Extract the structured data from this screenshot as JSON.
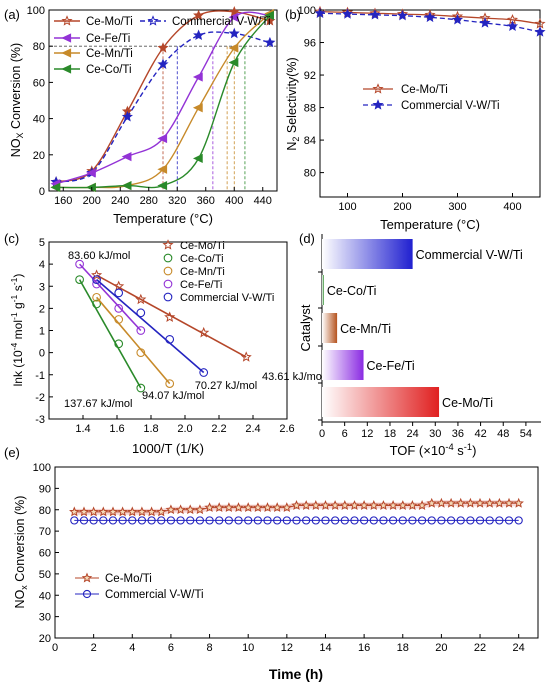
{
  "panels": {
    "a": {
      "label": "(a)",
      "chart_data": {
        "type": "line",
        "xlabel": "Temperature (°C)",
        "ylabel": "NOx Conversion (%)",
        "xlim": [
          140,
          460
        ],
        "ylim": [
          0,
          100
        ],
        "xticks": [
          160,
          200,
          240,
          280,
          320,
          360,
          400,
          440
        ],
        "yticks": [
          0,
          20,
          40,
          60,
          80,
          100
        ],
        "legend_position": "top",
        "series": [
          {
            "name": "Ce-Mo/Ti",
            "marker": "star",
            "color": "#b5472a",
            "dash": false,
            "x": [
              150,
              200,
              250,
              300,
              350,
              400,
              450
            ],
            "y": [
              5,
              11,
              44,
              79,
              97,
              99,
              94
            ]
          },
          {
            "name": "Commercial V-W/Ti",
            "marker": "star",
            "color": "#2424c0",
            "dash": true,
            "x": [
              150,
              200,
              250,
              300,
              350,
              400,
              450
            ],
            "y": [
              5,
              10,
              41,
              70,
              86,
              87,
              82
            ]
          },
          {
            "name": "Ce-Fe/Ti",
            "marker": "triangle-left",
            "color": "#9333d6",
            "dash": false,
            "x": [
              150,
              200,
              250,
              300,
              350,
              400,
              450
            ],
            "y": [
              4,
              10,
              19,
              29,
              63,
              96,
              97
            ]
          },
          {
            "name": "Ce-Mn/Ti",
            "marker": "triangle-left",
            "color": "#c78a2a",
            "dash": false,
            "x": [
              150,
              200,
              250,
              300,
              350,
              400,
              450
            ],
            "y": [
              2,
              2,
              3,
              12,
              46,
              79,
              98
            ]
          },
          {
            "name": "Ce-Co/Ti",
            "marker": "triangle-left",
            "color": "#2a8a2a",
            "dash": false,
            "x": [
              150,
              200,
              250,
              300,
              350,
              400,
              450
            ],
            "y": [
              2,
              2,
              3,
              3,
              18,
              71,
              97
            ]
          }
        ],
        "guides": {
          "y": 80,
          "x": [
            300,
            320,
            370,
            390,
            400,
            415
          ]
        }
      }
    },
    "b": {
      "label": "(b)",
      "chart_data": {
        "type": "line",
        "xlabel": "Temperature (°C)",
        "ylabel": "N2 Selectivity(%)",
        "xlim": [
          50,
          450
        ],
        "ylim": [
          77,
          100
        ],
        "xticks": [
          100,
          200,
          300,
          400
        ],
        "yticks": [
          80,
          84,
          88,
          92,
          96,
          100
        ],
        "legend_position": "middle",
        "series": [
          {
            "name": "Ce-Mo/Ti",
            "marker": "star",
            "color": "#b5472a",
            "dash": false,
            "x": [
              50,
              100,
              150,
              200,
              250,
              300,
              350,
              400,
              450
            ],
            "y": [
              99.8,
              99.7,
              99.6,
              99.5,
              99.4,
              99.2,
              99.0,
              98.8,
              98.3
            ]
          },
          {
            "name": "Commercial V-W/Ti",
            "marker": "star",
            "color": "#2424c0",
            "dash": true,
            "x": [
              50,
              100,
              150,
              200,
              250,
              300,
              350,
              400,
              450
            ],
            "y": [
              99.6,
              99.5,
              99.4,
              99.3,
              99.1,
              98.8,
              98.4,
              98.0,
              97.3
            ]
          }
        ]
      }
    },
    "c": {
      "label": "(c)",
      "chart_data": {
        "type": "scatter",
        "xlabel": "1000/T (1/K)",
        "ylabel": "lnk (10-4 mol-1 g-1 s-1)",
        "xlim": [
          1.2,
          2.6
        ],
        "ylim": [
          -3,
          5
        ],
        "xticks": [
          1.4,
          1.6,
          1.8,
          2.0,
          2.2,
          2.4,
          2.6
        ],
        "yticks": [
          -3,
          -2,
          -1,
          0,
          1,
          2,
          3,
          4,
          5
        ],
        "legend_position": "top-right",
        "series": [
          {
            "name": "Ce-Mo/Ti",
            "marker": "star",
            "color": "#b5472a",
            "x": [
              1.48,
              1.61,
              1.74,
              1.91,
              2.11,
              2.36
            ],
            "y": [
              3.5,
              3.0,
              2.4,
              1.6,
              0.9,
              -0.2
            ],
            "energy": "43.61 kJ/mol"
          },
          {
            "name": "Ce-Co/Ti",
            "marker": "circle",
            "color": "#2a8a2a",
            "x": [
              1.38,
              1.48,
              1.61,
              1.74
            ],
            "y": [
              3.3,
              2.2,
              0.4,
              -1.6
            ],
            "energy": "137.67 kJ/mol"
          },
          {
            "name": "Ce-Mn/Ti",
            "marker": "circle",
            "color": "#c78a2a",
            "x": [
              1.48,
              1.61,
              1.74,
              1.91
            ],
            "y": [
              2.5,
              1.5,
              0.0,
              -1.4
            ],
            "energy": "94.07 kJ/mol"
          },
          {
            "name": "Ce-Fe/Ti",
            "marker": "circle",
            "color": "#9333d6",
            "x": [
              1.38,
              1.48,
              1.61,
              1.74
            ],
            "y": [
              4.0,
              3.1,
              2.0,
              1.0
            ],
            "energy": "83.60 kJ/mol"
          },
          {
            "name": "Commercial V-W/Ti",
            "marker": "circle",
            "color": "#2424c0",
            "x": [
              1.48,
              1.61,
              1.74,
              1.91,
              2.11
            ],
            "y": [
              3.3,
              2.7,
              1.8,
              0.6,
              -0.9
            ],
            "energy": "70.27 kJ/mol"
          }
        ]
      }
    },
    "d": {
      "label": "(d)",
      "chart_data": {
        "type": "bar",
        "orientation": "horizontal",
        "xlabel": "TOF (×10-4 s-1)",
        "ylabel": "Catalyst",
        "xlim": [
          0,
          58
        ],
        "xticks": [
          0,
          6,
          12,
          18,
          24,
          30,
          36,
          42,
          48,
          54
        ],
        "categories": [
          "Commercial V-W/Ti",
          "Ce-Co/Ti",
          "Ce-Mn/Ti",
          "Ce-Fe/Ti",
          "Ce-Mo/Ti"
        ],
        "values": [
          24.0,
          0.5,
          4.0,
          11.0,
          31.0
        ],
        "colors": [
          "#2020d0",
          "#2a8a2a",
          "#b5531e",
          "#8a2be2",
          "#e02020"
        ]
      }
    },
    "e": {
      "label": "(e)",
      "chart_data": {
        "type": "line",
        "xlabel": "Time (h)",
        "ylabel": "NOx Conversion (%)",
        "xlim": [
          0,
          25
        ],
        "ylim": [
          20,
          100
        ],
        "xticks": [
          0,
          2,
          4,
          6,
          8,
          10,
          12,
          14,
          16,
          18,
          20,
          22,
          24
        ],
        "yticks": [
          20,
          30,
          40,
          50,
          60,
          70,
          80,
          90,
          100
        ],
        "legend_position": "middle-left",
        "series": [
          {
            "name": "Ce-Mo/Ti",
            "marker": "star",
            "color": "#b5472a",
            "band": true,
            "x_start": 1,
            "x_end": 24,
            "x_step": 0.5,
            "segments": [
              [
                1,
                5.5,
                79
              ],
              [
                5.5,
                7.5,
                80
              ],
              [
                7.5,
                12,
                81
              ],
              [
                12,
                19,
                82
              ],
              [
                19,
                24,
                83
              ]
            ]
          },
          {
            "name": "Commercial V-W/Ti",
            "marker": "circle",
            "color": "#2424c0",
            "band": false,
            "x_start": 1,
            "x_end": 24,
            "x_step": 0.5,
            "segments": [
              [
                1,
                24,
                75
              ]
            ]
          }
        ]
      }
    }
  }
}
